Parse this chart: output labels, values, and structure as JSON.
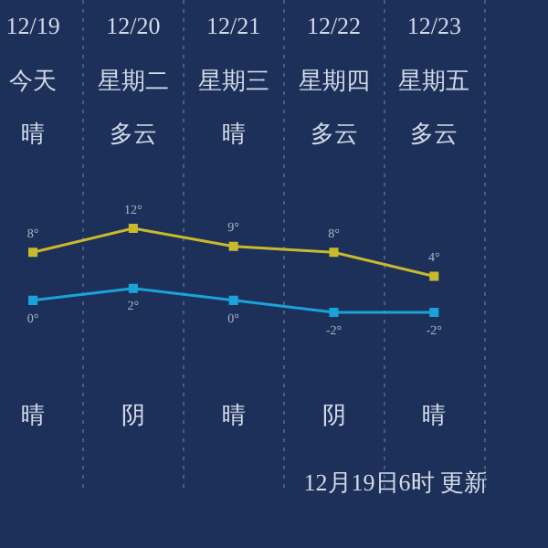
{
  "chart_data": {
    "type": "line",
    "categories": [
      "12/19",
      "12/20",
      "12/21",
      "12/22",
      "12/23"
    ],
    "series": [
      {
        "color": "#c9b92c",
        "values": [
          8,
          12,
          9,
          8,
          4
        ],
        "value_labels": [
          "8°",
          "12°",
          "9°",
          "8°",
          "4°"
        ]
      },
      {
        "color": "#1aa3d9",
        "values": [
          0,
          2,
          0,
          -2,
          -2
        ],
        "value_labels": [
          "0°",
          "2°",
          "0°",
          "-2°",
          "-2°"
        ]
      }
    ],
    "grid": "x",
    "legend": false,
    "marker": "square",
    "line_style": "solid",
    "annotations": [
      "今天",
      "晴",
      "晴",
      "星期二",
      "多云",
      "阴",
      "星期三",
      "晴",
      "晴",
      "星期四",
      "多云",
      "阴",
      "星期五",
      "多云",
      "晴",
      "12月19日6时 更新"
    ]
  }
}
